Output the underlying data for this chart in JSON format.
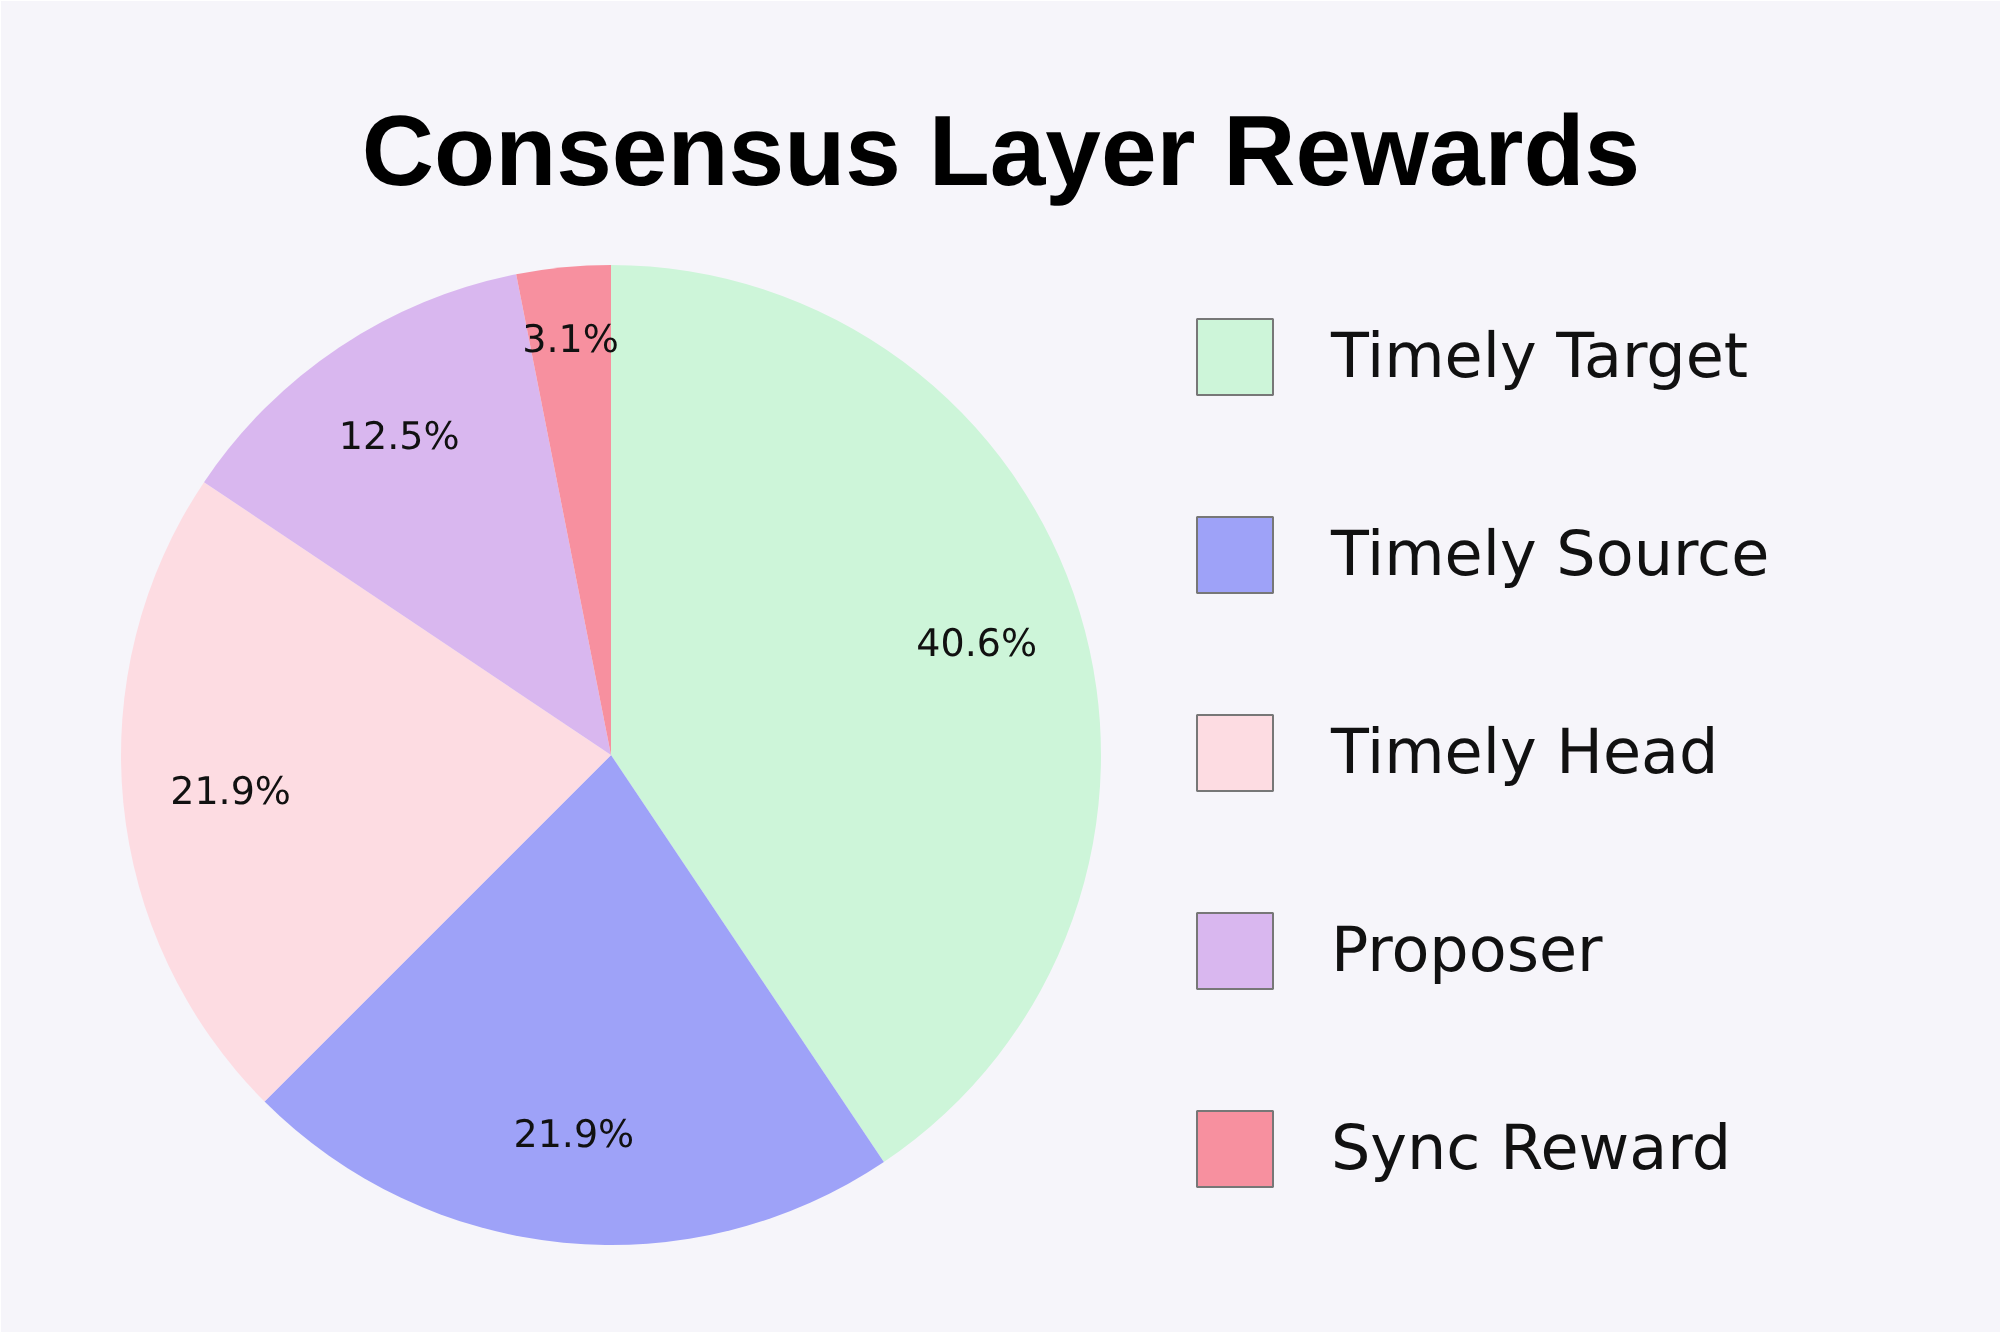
{
  "chart_data": {
    "type": "pie",
    "title": "Consensus Layer Rewards",
    "categories": [
      "Timely Target",
      "Timely Source",
      "Timely Head",
      "Proposer",
      "Sync Reward"
    ],
    "values": [
      40.6,
      21.9,
      21.9,
      12.5,
      3.1
    ],
    "colors": [
      "#cdf5d9",
      "#9ea2f8",
      "#fddce2",
      "#d9b7ef",
      "#f7909f"
    ],
    "value_labels": [
      "40.6%",
      "21.9%",
      "21.9%",
      "12.5%",
      "3.1%"
    ],
    "legend": "right"
  }
}
